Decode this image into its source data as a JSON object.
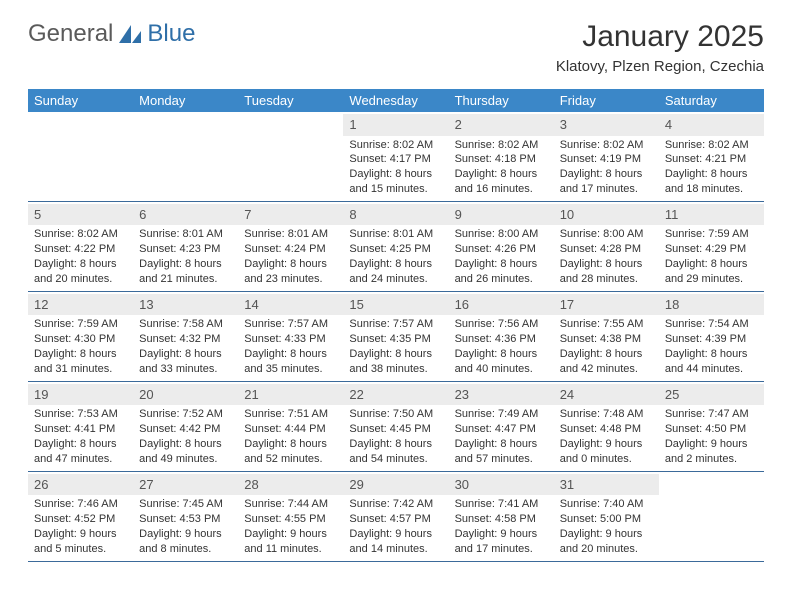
{
  "brand": {
    "text_general": "General",
    "text_blue": "Blue",
    "accent_color": "#2f6fa8"
  },
  "header": {
    "title": "January 2025",
    "subtitle": "Klatovy, Plzen Region, Czechia"
  },
  "colors": {
    "header_bar": "#3b87c8",
    "header_text": "#ffffff",
    "daynum_bg": "#ececec",
    "border": "#3b6a9a",
    "body_text": "#333333"
  },
  "weekdays": [
    "Sunday",
    "Monday",
    "Tuesday",
    "Wednesday",
    "Thursday",
    "Friday",
    "Saturday"
  ],
  "weeks": [
    [
      {
        "n": "",
        "sunrise": "",
        "sunset": "",
        "daylight": ""
      },
      {
        "n": "",
        "sunrise": "",
        "sunset": "",
        "daylight": ""
      },
      {
        "n": "",
        "sunrise": "",
        "sunset": "",
        "daylight": ""
      },
      {
        "n": "1",
        "sunrise": "Sunrise: 8:02 AM",
        "sunset": "Sunset: 4:17 PM",
        "daylight": "Daylight: 8 hours and 15 minutes."
      },
      {
        "n": "2",
        "sunrise": "Sunrise: 8:02 AM",
        "sunset": "Sunset: 4:18 PM",
        "daylight": "Daylight: 8 hours and 16 minutes."
      },
      {
        "n": "3",
        "sunrise": "Sunrise: 8:02 AM",
        "sunset": "Sunset: 4:19 PM",
        "daylight": "Daylight: 8 hours and 17 minutes."
      },
      {
        "n": "4",
        "sunrise": "Sunrise: 8:02 AM",
        "sunset": "Sunset: 4:21 PM",
        "daylight": "Daylight: 8 hours and 18 minutes."
      }
    ],
    [
      {
        "n": "5",
        "sunrise": "Sunrise: 8:02 AM",
        "sunset": "Sunset: 4:22 PM",
        "daylight": "Daylight: 8 hours and 20 minutes."
      },
      {
        "n": "6",
        "sunrise": "Sunrise: 8:01 AM",
        "sunset": "Sunset: 4:23 PM",
        "daylight": "Daylight: 8 hours and 21 minutes."
      },
      {
        "n": "7",
        "sunrise": "Sunrise: 8:01 AM",
        "sunset": "Sunset: 4:24 PM",
        "daylight": "Daylight: 8 hours and 23 minutes."
      },
      {
        "n": "8",
        "sunrise": "Sunrise: 8:01 AM",
        "sunset": "Sunset: 4:25 PM",
        "daylight": "Daylight: 8 hours and 24 minutes."
      },
      {
        "n": "9",
        "sunrise": "Sunrise: 8:00 AM",
        "sunset": "Sunset: 4:26 PM",
        "daylight": "Daylight: 8 hours and 26 minutes."
      },
      {
        "n": "10",
        "sunrise": "Sunrise: 8:00 AM",
        "sunset": "Sunset: 4:28 PM",
        "daylight": "Daylight: 8 hours and 28 minutes."
      },
      {
        "n": "11",
        "sunrise": "Sunrise: 7:59 AM",
        "sunset": "Sunset: 4:29 PM",
        "daylight": "Daylight: 8 hours and 29 minutes."
      }
    ],
    [
      {
        "n": "12",
        "sunrise": "Sunrise: 7:59 AM",
        "sunset": "Sunset: 4:30 PM",
        "daylight": "Daylight: 8 hours and 31 minutes."
      },
      {
        "n": "13",
        "sunrise": "Sunrise: 7:58 AM",
        "sunset": "Sunset: 4:32 PM",
        "daylight": "Daylight: 8 hours and 33 minutes."
      },
      {
        "n": "14",
        "sunrise": "Sunrise: 7:57 AM",
        "sunset": "Sunset: 4:33 PM",
        "daylight": "Daylight: 8 hours and 35 minutes."
      },
      {
        "n": "15",
        "sunrise": "Sunrise: 7:57 AM",
        "sunset": "Sunset: 4:35 PM",
        "daylight": "Daylight: 8 hours and 38 minutes."
      },
      {
        "n": "16",
        "sunrise": "Sunrise: 7:56 AM",
        "sunset": "Sunset: 4:36 PM",
        "daylight": "Daylight: 8 hours and 40 minutes."
      },
      {
        "n": "17",
        "sunrise": "Sunrise: 7:55 AM",
        "sunset": "Sunset: 4:38 PM",
        "daylight": "Daylight: 8 hours and 42 minutes."
      },
      {
        "n": "18",
        "sunrise": "Sunrise: 7:54 AM",
        "sunset": "Sunset: 4:39 PM",
        "daylight": "Daylight: 8 hours and 44 minutes."
      }
    ],
    [
      {
        "n": "19",
        "sunrise": "Sunrise: 7:53 AM",
        "sunset": "Sunset: 4:41 PM",
        "daylight": "Daylight: 8 hours and 47 minutes."
      },
      {
        "n": "20",
        "sunrise": "Sunrise: 7:52 AM",
        "sunset": "Sunset: 4:42 PM",
        "daylight": "Daylight: 8 hours and 49 minutes."
      },
      {
        "n": "21",
        "sunrise": "Sunrise: 7:51 AM",
        "sunset": "Sunset: 4:44 PM",
        "daylight": "Daylight: 8 hours and 52 minutes."
      },
      {
        "n": "22",
        "sunrise": "Sunrise: 7:50 AM",
        "sunset": "Sunset: 4:45 PM",
        "daylight": "Daylight: 8 hours and 54 minutes."
      },
      {
        "n": "23",
        "sunrise": "Sunrise: 7:49 AM",
        "sunset": "Sunset: 4:47 PM",
        "daylight": "Daylight: 8 hours and 57 minutes."
      },
      {
        "n": "24",
        "sunrise": "Sunrise: 7:48 AM",
        "sunset": "Sunset: 4:48 PM",
        "daylight": "Daylight: 9 hours and 0 minutes."
      },
      {
        "n": "25",
        "sunrise": "Sunrise: 7:47 AM",
        "sunset": "Sunset: 4:50 PM",
        "daylight": "Daylight: 9 hours and 2 minutes."
      }
    ],
    [
      {
        "n": "26",
        "sunrise": "Sunrise: 7:46 AM",
        "sunset": "Sunset: 4:52 PM",
        "daylight": "Daylight: 9 hours and 5 minutes."
      },
      {
        "n": "27",
        "sunrise": "Sunrise: 7:45 AM",
        "sunset": "Sunset: 4:53 PM",
        "daylight": "Daylight: 9 hours and 8 minutes."
      },
      {
        "n": "28",
        "sunrise": "Sunrise: 7:44 AM",
        "sunset": "Sunset: 4:55 PM",
        "daylight": "Daylight: 9 hours and 11 minutes."
      },
      {
        "n": "29",
        "sunrise": "Sunrise: 7:42 AM",
        "sunset": "Sunset: 4:57 PM",
        "daylight": "Daylight: 9 hours and 14 minutes."
      },
      {
        "n": "30",
        "sunrise": "Sunrise: 7:41 AM",
        "sunset": "Sunset: 4:58 PM",
        "daylight": "Daylight: 9 hours and 17 minutes."
      },
      {
        "n": "31",
        "sunrise": "Sunrise: 7:40 AM",
        "sunset": "Sunset: 5:00 PM",
        "daylight": "Daylight: 9 hours and 20 minutes."
      },
      {
        "n": "",
        "sunrise": "",
        "sunset": "",
        "daylight": ""
      }
    ]
  ]
}
